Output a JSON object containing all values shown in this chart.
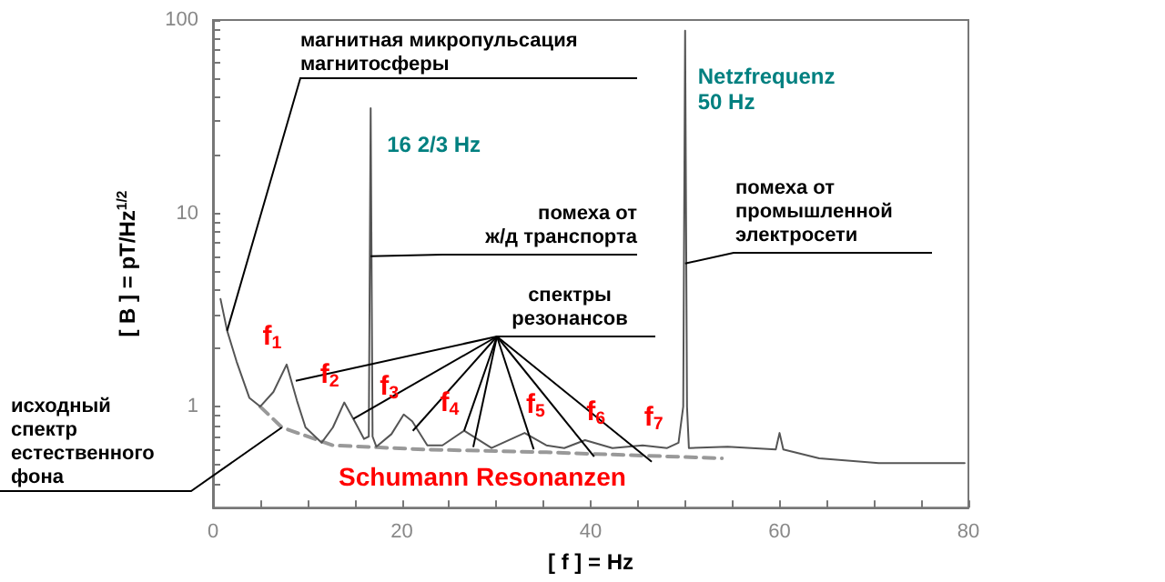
{
  "chart_data": {
    "type": "line",
    "xlabel": "[ f ] = Hz",
    "ylabel": "[ B ] = pT/Hz$^{1/2}$",
    "log": "y",
    "grid": false,
    "marker": "none",
    "xlim": [
      0,
      80
    ],
    "xticks": [
      0,
      {
        "value": 5,
        "label": null
      },
      {
        "value": 10,
        "label": null
      },
      {
        "value": 15,
        "label": null
      },
      20,
      {
        "value": 25,
        "label": null
      },
      {
        "value": 30,
        "label": null
      },
      {
        "value": 35,
        "label": null
      },
      40,
      {
        "value": 45,
        "label": null
      },
      {
        "value": 50,
        "label": null
      },
      {
        "value": 55,
        "label": null
      },
      60,
      {
        "value": 65,
        "label": null
      },
      {
        "value": 70,
        "label": null
      },
      {
        "value": 75,
        "label": null
      },
      80
    ],
    "ylim": [
      0.3,
      100
    ],
    "yticks": [
      {
        "value": 0.4,
        "label": null
      },
      {
        "value": 0.5,
        "label": null
      },
      {
        "value": 0.6,
        "label": null
      },
      {
        "value": 0.7,
        "label": null
      },
      {
        "value": 0.8,
        "label": null
      },
      {
        "value": 0.9,
        "label": null
      },
      1,
      {
        "value": 2,
        "label": null
      },
      {
        "value": 3,
        "label": null
      },
      {
        "value": 4,
        "label": null
      },
      {
        "value": 5,
        "label": null
      },
      {
        "value": 6,
        "label": null
      },
      {
        "value": 7,
        "label": null
      },
      {
        "value": 8,
        "label": null
      },
      {
        "value": 9,
        "label": null
      },
      10,
      {
        "value": 20,
        "label": null
      },
      {
        "value": 30,
        "label": null
      },
      {
        "value": 40,
        "label": null
      },
      {
        "value": 50,
        "label": null
      },
      {
        "value": 60,
        "label": null
      },
      {
        "value": 70,
        "label": null
      },
      {
        "value": 80,
        "label": null
      },
      {
        "value": 90,
        "label": null
      },
      100
    ],
    "series": [
      {
        "color": "#555555",
        "line_style": "solid",
        "x": [
          0.8,
          1.5,
          2.5,
          3.85,
          5.0,
          6.4,
          7.8,
          8.9,
          9.8,
          11.5,
          12.7,
          13.9,
          15.0,
          16.0,
          16.5,
          16.7,
          16.9,
          17.3,
          18.9,
          20.2,
          21.1,
          22.7,
          24.3,
          26.6,
          28.2,
          29.5,
          33.0,
          35.3,
          37.2,
          39.4,
          42.3,
          45.5,
          48.1,
          49.3,
          49.8,
          50.0,
          50.2,
          50.4,
          54.5,
          59.6,
          60.0,
          60.4,
          64.2,
          70.5,
          79.6
        ],
        "values": [
          3.6,
          2.47,
          1.71,
          1.11,
          1.0,
          1.19,
          1.65,
          1.07,
          0.78,
          0.65,
          0.78,
          1.05,
          0.84,
          0.68,
          0.7,
          35,
          0.7,
          0.62,
          0.72,
          0.91,
          0.84,
          0.63,
          0.63,
          0.75,
          0.67,
          0.61,
          0.73,
          0.63,
          0.61,
          0.67,
          0.61,
          0.63,
          0.61,
          0.65,
          1.0,
          88,
          1.0,
          0.61,
          0.62,
          0.6,
          0.73,
          0.6,
          0.54,
          0.51,
          0.51
        ]
      },
      {
        "color": "#999999",
        "line_style": "dashed",
        "x": [
          5.0,
          7.3,
          12.7,
          22.4,
          35.3,
          53.9
        ],
        "values": [
          1.0,
          0.78,
          0.63,
          0.6,
          0.58,
          0.54
        ]
      }
    ],
    "annotations": [
      {
        "text": "магнитная микропульсация\nмагнитосферы",
        "x": 1.5,
        "y": 2.47
      },
      {
        "text": "16 2/3 Hz",
        "x": 16.7,
        "y": 35
      },
      {
        "text": "помеха от\nж/д транспорта",
        "x": 16.7,
        "y": 6
      },
      {
        "text": "Netzfrequenz\n50 Hz",
        "x": 50,
        "y": 88
      },
      {
        "text": "помеха от\nпромышленной\nэлектросети",
        "x": 50,
        "y": 5.5
      },
      {
        "text": "спектры\nрезонансов",
        "x": 26.6,
        "y": 0.75
      },
      {
        "text": "исходный\nспектр\nестественного\nфона",
        "x": 7.3,
        "y": 0.78
      },
      "Schumann Resonanzen",
      {
        "text": "f$_{1}$",
        "x": 7.8,
        "y": 1.65
      },
      {
        "text": "f$_{2}$",
        "x": 13.9,
        "y": 1.05
      },
      {
        "text": "f$_{3}$",
        "x": 20.2,
        "y": 0.91
      },
      {
        "text": "f$_{4}$",
        "x": 26.6,
        "y": 0.75
      },
      {
        "text": "f$_{5}$",
        "x": 33.0,
        "y": 0.73
      },
      {
        "text": "f$_{6}$",
        "x": 39.4,
        "y": 0.67
      },
      {
        "text": "f$_{7}$",
        "x": 45.5,
        "y": 0.63
      }
    ]
  }
}
